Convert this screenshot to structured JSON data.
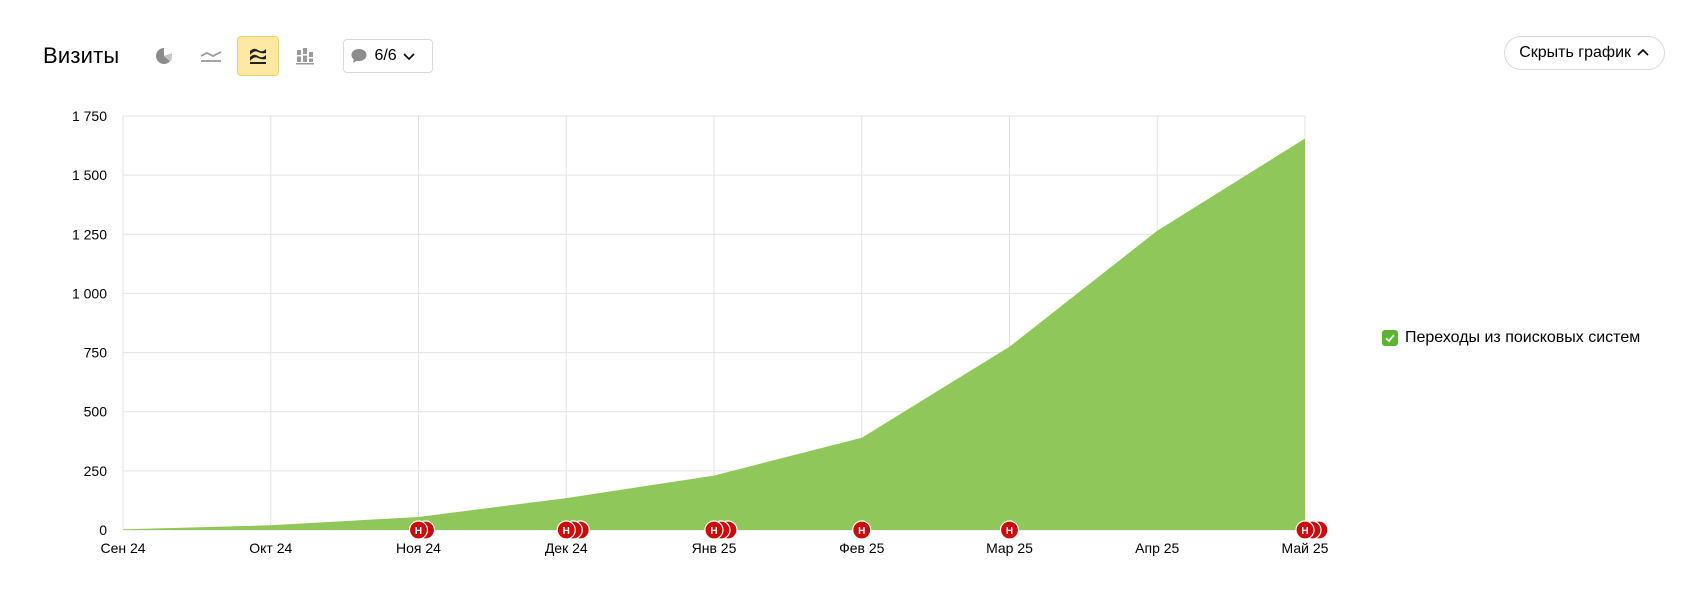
{
  "header": {
    "title": "Визиты",
    "notes_label": "6/6",
    "hide_label": "Скрыть график"
  },
  "toolbar_icons": [
    "pie-chart-icon",
    "line-chart-icon",
    "area-chart-icon",
    "bar-chart-icon"
  ],
  "legend": {
    "label": "Переходы из поисковых систем",
    "checked": true
  },
  "colors": {
    "area": "#8fc75a",
    "checkbox": "#5cb531",
    "note_marker": "#cc0a0a",
    "grid": "#e3e3e3",
    "active_button_bg": "#fde9a4"
  },
  "note_marker_letter": "Н",
  "chart_data": {
    "type": "area",
    "categories": [
      "Сен 24",
      "Окт 24",
      "Ноя 24",
      "Дек 24",
      "Янв 25",
      "Фев 25",
      "Мар 25",
      "Апр 25",
      "Май 25"
    ],
    "series": [
      {
        "name": "Переходы из поисковых систем",
        "values": [
          3,
          20,
          55,
          135,
          230,
          390,
          775,
          1265,
          1655
        ]
      }
    ],
    "yticks": [
      0,
      250,
      500,
      750,
      1000,
      1250,
      1500,
      1750
    ],
    "ytick_labels": [
      "0",
      "250",
      "500",
      "750",
      "1 000",
      "1 250",
      "1 500",
      "1 750"
    ],
    "ylim": [
      0,
      1750
    ],
    "grid": true,
    "legend_position": "right",
    "notes": [
      {
        "category": "Ноя 24",
        "count": 2
      },
      {
        "category": "Дек 24",
        "count": 3
      },
      {
        "category": "Янв 25",
        "count": 3
      },
      {
        "category": "Фев 25",
        "count": 1
      },
      {
        "category": "Мар 25",
        "count": 1
      },
      {
        "category": "Май 25",
        "count": 3
      }
    ]
  }
}
